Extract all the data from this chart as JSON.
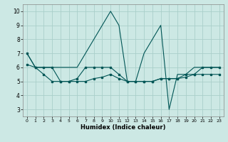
{
  "xlabel": "Humidex (Indice chaleur)",
  "background_color": "#cce8e4",
  "grid_color": "#aacfca",
  "line_color": "#005555",
  "xlim": [
    -0.5,
    23.5
  ],
  "ylim": [
    2.5,
    10.5
  ],
  "xticks": [
    0,
    1,
    2,
    3,
    4,
    5,
    6,
    7,
    8,
    9,
    10,
    11,
    12,
    13,
    14,
    15,
    16,
    17,
    18,
    19,
    20,
    21,
    22,
    23
  ],
  "yticks": [
    3,
    4,
    5,
    6,
    7,
    8,
    9,
    10
  ],
  "series": [
    {
      "x": [
        0,
        1,
        2,
        3,
        4,
        5,
        6,
        7,
        8,
        9,
        10,
        11,
        12,
        13,
        14,
        15,
        16,
        17,
        18,
        19,
        20,
        21,
        22,
        23
      ],
      "y": [
        7,
        6,
        6,
        6,
        6,
        6,
        6,
        7,
        8,
        9,
        10,
        9,
        5,
        5,
        7,
        8,
        9,
        3,
        5.5,
        5.5,
        6,
        6,
        6,
        6
      ],
      "marker": null,
      "linewidth": 0.8
    },
    {
      "x": [
        0,
        1,
        2,
        3,
        4,
        5,
        6,
        7,
        8,
        9,
        10,
        11,
        12,
        13,
        14,
        15,
        16,
        17,
        18,
        19,
        20,
        21,
        22,
        23
      ],
      "y": [
        7,
        6,
        6,
        6,
        5,
        5,
        5.2,
        6,
        6,
        6,
        6,
        5.5,
        5,
        5,
        5,
        5,
        5.2,
        5.2,
        5.2,
        5.5,
        5.5,
        6,
        6,
        6
      ],
      "marker": "s",
      "linewidth": 0.8
    },
    {
      "x": [
        0,
        1,
        2,
        3,
        4,
        5,
        6,
        7,
        8,
        9,
        10,
        11,
        12,
        13,
        14,
        15,
        16,
        17,
        18,
        19,
        20,
        21,
        22,
        23
      ],
      "y": [
        6.2,
        6,
        5.5,
        5,
        5,
        5,
        5,
        5,
        5.2,
        5.3,
        5.5,
        5.2,
        5,
        5,
        5,
        5,
        5.2,
        5.2,
        5.2,
        5.3,
        5.5,
        5.5,
        5.5,
        5.5
      ],
      "marker": "s",
      "linewidth": 0.8
    }
  ]
}
